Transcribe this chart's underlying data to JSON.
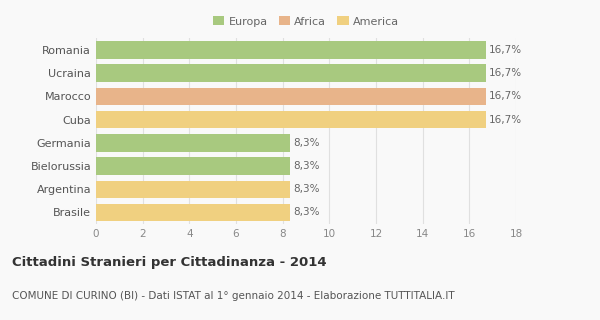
{
  "categories": [
    "Romania",
    "Ucraina",
    "Marocco",
    "Cuba",
    "Germania",
    "Bielorussia",
    "Argentina",
    "Brasile"
  ],
  "values": [
    16.7,
    16.7,
    16.7,
    16.7,
    8.3,
    8.3,
    8.3,
    8.3
  ],
  "labels": [
    "16,7%",
    "16,7%",
    "16,7%",
    "16,7%",
    "8,3%",
    "8,3%",
    "8,3%",
    "8,3%"
  ],
  "colors": [
    "#a8c97f",
    "#a8c97f",
    "#e8b48a",
    "#f0d080",
    "#a8c97f",
    "#a8c97f",
    "#f0d080",
    "#f0d080"
  ],
  "legend": [
    {
      "label": "Europa",
      "color": "#a8c97f"
    },
    {
      "label": "Africa",
      "color": "#e8b48a"
    },
    {
      "label": "America",
      "color": "#f0d080"
    }
  ],
  "xlim": [
    0,
    18
  ],
  "xticks": [
    0,
    2,
    4,
    6,
    8,
    10,
    12,
    14,
    16,
    18
  ],
  "title": "Cittadini Stranieri per Cittadinanza - 2014",
  "subtitle": "COMUNE DI CURINO (BI) - Dati ISTAT al 1° gennaio 2014 - Elaborazione TUTTITALIA.IT",
  "title_fontsize": 9.5,
  "subtitle_fontsize": 7.5,
  "background_color": "#f9f9f9",
  "grid_color": "#e0e0e0",
  "bar_height": 0.75
}
